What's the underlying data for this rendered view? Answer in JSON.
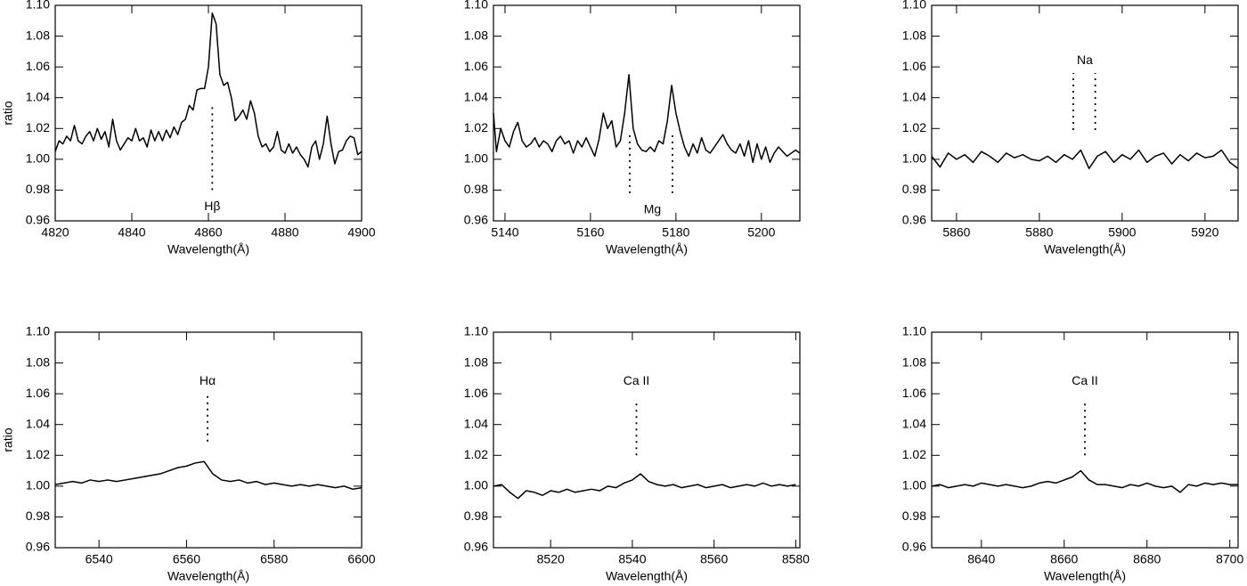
{
  "chart_data": [
    {
      "type": "line",
      "xlabel": "Wavelength(Å)",
      "ylabel": "ratio",
      "color": "#000000",
      "xlim": [
        4820,
        4900
      ],
      "xticks": [
        4820,
        4840,
        4860,
        4880,
        4900
      ],
      "ylim": [
        0.96,
        1.1
      ],
      "yticks": [
        0.96,
        0.98,
        {
          "value": 1.0,
          "label": "1.00"
        },
        1.02,
        1.04,
        1.06,
        1.08,
        {
          "value": 1.1,
          "label": "1.10"
        }
      ],
      "x": [
        4820,
        4821,
        4822,
        4823,
        4824,
        4825,
        4826,
        4827,
        4828,
        4829,
        4830,
        4831,
        4832,
        4833,
        4834,
        4835,
        4836,
        4837,
        4838,
        4839,
        4840,
        4841,
        4842,
        4843,
        4844,
        4845,
        4846,
        4847,
        4848,
        4849,
        4850,
        4851,
        4852,
        4853,
        4854,
        4855,
        4856,
        4857,
        4858,
        4859,
        4860,
        4861,
        4862,
        4863,
        4864,
        4865,
        4866,
        4867,
        4868,
        4869,
        4870,
        4871,
        4872,
        4873,
        4874,
        4875,
        4876,
        4877,
        4878,
        4879,
        4880,
        4881,
        4882,
        4883,
        4884,
        4885,
        4886,
        4887,
        4888,
        4889,
        4890,
        4891,
        4892,
        4893,
        4894,
        4895,
        4896,
        4897,
        4898,
        4899,
        4900
      ],
      "values": [
        1.005,
        1.012,
        1.01,
        1.015,
        1.012,
        1.022,
        1.012,
        1.01,
        1.015,
        1.018,
        1.012,
        1.02,
        1.013,
        1.018,
        1.008,
        1.026,
        1.012,
        1.006,
        1.01,
        1.014,
        1.012,
        1.02,
        1.012,
        1.014,
        1.008,
        1.019,
        1.012,
        1.018,
        1.012,
        1.019,
        1.014,
        1.021,
        1.016,
        1.024,
        1.026,
        1.035,
        1.032,
        1.045,
        1.046,
        1.046,
        1.06,
        1.095,
        1.088,
        1.055,
        1.048,
        1.05,
        1.04,
        1.025,
        1.028,
        1.032,
        1.026,
        1.038,
        1.03,
        1.015,
        1.008,
        1.01,
        1.005,
        1.008,
        1.018,
        1.006,
        1.004,
        1.01,
        1.004,
        1.008,
        1.003,
        1.0,
        0.995,
        1.008,
        1.012,
        1.0,
        1.01,
        1.028,
        1.01,
        0.997,
        1.005,
        1.006,
        1.012,
        1.015,
        1.014,
        1.003,
        1.005
      ],
      "annotations": [
        {
          "text": "Hβ",
          "x": 4861,
          "y": 0.969,
          "lines": [
            {
              "x": 4861,
              "y": [
                0.98,
                1.036
              ]
            }
          ]
        }
      ]
    },
    {
      "type": "line",
      "xlabel": "Wavelength(Å)",
      "color": "#000000",
      "xlim": [
        5137.3,
        5209
      ],
      "xticks": [
        5140,
        5160,
        5180,
        5200
      ],
      "ylim": [
        0.96,
        1.1
      ],
      "yticks": [
        0.96,
        0.98,
        {
          "value": 1.0,
          "label": "1.00"
        },
        1.02,
        1.04,
        1.06,
        1.08,
        {
          "value": 1.1,
          "label": "1.10"
        }
      ],
      "x": [
        5137.3,
        5138,
        5139,
        5140,
        5141,
        5142,
        5143,
        5144,
        5145,
        5146,
        5147,
        5148,
        5149,
        5150,
        5151,
        5152,
        5153,
        5154,
        5155,
        5156,
        5157,
        5158,
        5159,
        5160,
        5161,
        5162,
        5163,
        5164,
        5165,
        5166,
        5167,
        5168,
        5169,
        5170,
        5171,
        5172,
        5173,
        5174,
        5175,
        5176,
        5177,
        5178,
        5179,
        5180,
        5181,
        5182,
        5183,
        5184,
        5185,
        5186,
        5187,
        5188,
        5189,
        5190,
        5191,
        5192,
        5193,
        5194,
        5195,
        5196,
        5197,
        5198,
        5199,
        5200,
        5201,
        5202,
        5203,
        5204,
        5205,
        5206,
        5207,
        5208,
        5209
      ],
      "values": [
        1.03,
        1.005,
        1.02,
        1.012,
        1.008,
        1.018,
        1.024,
        1.012,
        1.008,
        1.01,
        1.014,
        1.008,
        1.012,
        1.01,
        1.005,
        1.012,
        1.015,
        1.01,
        1.012,
        1.004,
        1.012,
        1.008,
        1.014,
        1.008,
        1.002,
        1.013,
        1.03,
        1.02,
        1.025,
        1.008,
        1.012,
        1.03,
        1.055,
        1.02,
        1.01,
        1.006,
        1.005,
        1.008,
        1.005,
        1.012,
        1.01,
        1.025,
        1.048,
        1.03,
        1.018,
        1.008,
        1.002,
        1.01,
        1.004,
        1.014,
        1.006,
        1.004,
        1.008,
        1.012,
        1.016,
        1.01,
        1.006,
        1.004,
        1.01,
        1.002,
        1.012,
        0.998,
        1.01,
        1.0,
        1.008,
        0.998,
        1.004,
        1.008,
        1.005,
        1.002,
        1.004,
        1.006,
        1.004
      ],
      "annotations": [
        {
          "text": "Mg",
          "x": 5174.5,
          "y": 0.967,
          "lines": [
            {
              "x": 5169.2,
              "y": [
                0.978,
                1.017
              ]
            },
            {
              "x": 5179.2,
              "y": [
                0.978,
                1.016
              ]
            }
          ]
        }
      ]
    },
    {
      "type": "line",
      "xlabel": "Wavelength(Å)",
      "color": "#000000",
      "xlim": [
        5854,
        5928
      ],
      "xticks": [
        5860,
        5880,
        5900,
        5920
      ],
      "ylim": [
        0.96,
        1.1
      ],
      "yticks": [
        0.96,
        0.98,
        {
          "value": 1.0,
          "label": "1.00"
        },
        1.02,
        1.04,
        1.06,
        1.08,
        {
          "value": 1.1,
          "label": "1.10"
        }
      ],
      "x": [
        5854,
        5856,
        5858,
        5860,
        5862,
        5864,
        5866,
        5868,
        5870,
        5872,
        5874,
        5876,
        5878,
        5880,
        5882,
        5884,
        5886,
        5888,
        5890,
        5892,
        5894,
        5896,
        5898,
        5900,
        5902,
        5904,
        5906,
        5908,
        5910,
        5912,
        5914,
        5916,
        5918,
        5920,
        5922,
        5924,
        5926,
        5928
      ],
      "values": [
        1.002,
        0.995,
        1.004,
        1.0,
        1.003,
        0.998,
        1.005,
        1.002,
        0.998,
        1.004,
        1.001,
        1.003,
        1.0,
        0.999,
        1.002,
        0.998,
        1.003,
        1.0,
        1.006,
        0.994,
        1.002,
        1.005,
        0.998,
        1.003,
        1.0,
        1.006,
        0.998,
        1.002,
        1.004,
        0.997,
        1.003,
        0.999,
        1.004,
        1.001,
        1.002,
        1.006,
        0.998,
        0.994
      ],
      "annotations": [
        {
          "text": "Na",
          "x": 5891,
          "y": 1.064,
          "lines": [
            {
              "x": 5888.2,
              "y": [
                1.019,
                1.056
              ]
            },
            {
              "x": 5893.5,
              "y": [
                1.019,
                1.056
              ]
            }
          ]
        }
      ]
    },
    {
      "type": "line",
      "xlabel": "Wavelength(Å)",
      "ylabel": "ratio",
      "color": "#000000",
      "xlim": [
        6530,
        6600
      ],
      "xticks": [
        6540,
        6560,
        6580,
        6600
      ],
      "ylim": [
        0.96,
        1.1
      ],
      "yticks": [
        0.96,
        0.98,
        {
          "value": 1.0,
          "label": "1.00"
        },
        1.02,
        1.04,
        1.06,
        1.08,
        {
          "value": 1.1,
          "label": "1.10"
        }
      ],
      "x": [
        6530,
        6532,
        6534,
        6536,
        6538,
        6540,
        6542,
        6544,
        6546,
        6548,
        6550,
        6552,
        6554,
        6556,
        6558,
        6560,
        6562,
        6564,
        6566,
        6568,
        6570,
        6572,
        6574,
        6576,
        6578,
        6580,
        6582,
        6584,
        6586,
        6588,
        6590,
        6592,
        6594,
        6596,
        6598,
        6600
      ],
      "values": [
        1.001,
        1.002,
        1.003,
        1.002,
        1.004,
        1.003,
        1.004,
        1.003,
        1.004,
        1.005,
        1.006,
        1.007,
        1.008,
        1.01,
        1.012,
        1.013,
        1.015,
        1.016,
        1.008,
        1.004,
        1.003,
        1.004,
        1.002,
        1.003,
        1.001,
        1.002,
        1.001,
        1.0,
        1.001,
        1.0,
        1.001,
        1.0,
        0.999,
        1.0,
        0.998,
        0.999
      ],
      "annotations": [
        {
          "text": "Hα",
          "x": 6564.8,
          "y": 1.068,
          "lines": [
            {
              "x": 6564.8,
              "y": [
                1.029,
                1.06
              ]
            }
          ]
        }
      ]
    },
    {
      "type": "line",
      "xlabel": "Wavelength(Å)",
      "color": "#000000",
      "xlim": [
        8506,
        8581
      ],
      "xticks": [
        8520,
        8540,
        8560,
        8580
      ],
      "ylim": [
        0.96,
        1.1
      ],
      "yticks": [
        0.96,
        0.98,
        {
          "value": 1.0,
          "label": "1.00"
        },
        1.02,
        1.04,
        1.06,
        1.08,
        {
          "value": 1.1,
          "label": "1.10"
        }
      ],
      "x": [
        8506,
        8508,
        8510,
        8512,
        8514,
        8516,
        8518,
        8520,
        8522,
        8524,
        8526,
        8528,
        8530,
        8532,
        8534,
        8536,
        8538,
        8540,
        8542,
        8544,
        8546,
        8548,
        8550,
        8552,
        8554,
        8556,
        8558,
        8560,
        8562,
        8564,
        8566,
        8568,
        8570,
        8572,
        8574,
        8576,
        8578,
        8580
      ],
      "values": [
        1.0,
        1.001,
        0.996,
        0.992,
        0.997,
        0.996,
        0.994,
        0.997,
        0.996,
        0.998,
        0.996,
        0.997,
        0.998,
        0.997,
        1.0,
        0.999,
        1.002,
        1.004,
        1.008,
        1.003,
        1.001,
        1.0,
        1.001,
        0.999,
        1.0,
        1.001,
        0.999,
        1.0,
        1.001,
        0.999,
        1.0,
        1.001,
        1.0,
        1.002,
        1.0,
        1.001,
        1.0,
        1.001
      ],
      "annotations": [
        {
          "text": "Ca II",
          "x": 8541,
          "y": 1.068,
          "lines": [
            {
              "x": 8541,
              "y": [
                1.02,
                1.055
              ]
            }
          ]
        }
      ]
    },
    {
      "type": "line",
      "xlabel": "Wavelength(Å)",
      "color": "#000000",
      "xlim": [
        8628,
        8702
      ],
      "xticks": [
        8640,
        8660,
        8680,
        8700
      ],
      "ylim": [
        0.96,
        1.1
      ],
      "yticks": [
        0.96,
        0.98,
        {
          "value": 1.0,
          "label": "1.00"
        },
        1.02,
        1.04,
        1.06,
        1.08,
        {
          "value": 1.1,
          "label": "1.10"
        }
      ],
      "x": [
        8628,
        8630,
        8632,
        8634,
        8636,
        8638,
        8640,
        8642,
        8644,
        8646,
        8648,
        8650,
        8652,
        8654,
        8656,
        8658,
        8660,
        8662,
        8664,
        8666,
        8668,
        8670,
        8672,
        8674,
        8676,
        8678,
        8680,
        8682,
        8684,
        8686,
        8688,
        8690,
        8692,
        8694,
        8696,
        8698,
        8700,
        8702
      ],
      "values": [
        1.0,
        1.001,
        0.999,
        1.0,
        1.001,
        1.0,
        1.002,
        1.001,
        1.0,
        1.001,
        1.0,
        0.999,
        1.0,
        1.002,
        1.003,
        1.002,
        1.004,
        1.006,
        1.01,
        1.004,
        1.001,
        1.001,
        1.0,
        0.999,
        1.001,
        1.0,
        1.002,
        1.0,
        0.999,
        1.0,
        0.996,
        1.001,
        1.0,
        1.002,
        1.001,
        1.002,
        1.001,
        1.001
      ],
      "annotations": [
        {
          "text": "Ca II",
          "x": 8665,
          "y": 1.068,
          "lines": [
            {
              "x": 8665,
              "y": [
                1.02,
                1.055
              ]
            }
          ]
        }
      ]
    }
  ]
}
